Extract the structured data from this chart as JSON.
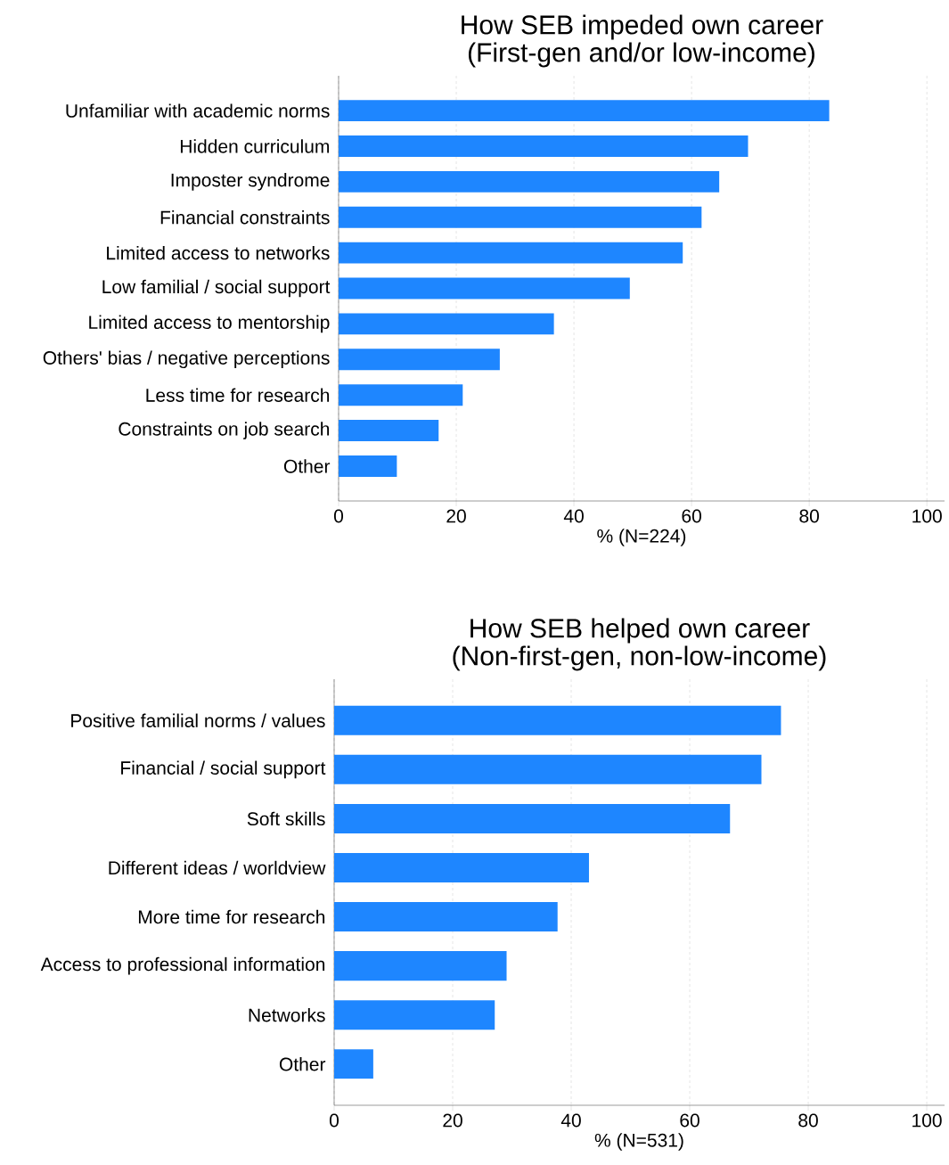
{
  "chart_data": [
    {
      "type": "bar",
      "orientation": "horizontal",
      "title": "How SEB impeded own career",
      "subtitle": "(First-gen and/or low-income)",
      "xlabel": "% (N=224)",
      "categories": [
        "Unfamiliar with academic norms",
        "Hidden curriculum",
        "Imposter syndrome",
        "Financial constraints",
        "Limited access to networks",
        "Low familial / social support",
        "Limited access to mentorship",
        "Others' bias / negative perceptions",
        "Less time for research",
        "Constraints on job search",
        "Other"
      ],
      "values": [
        83.4,
        69.6,
        64.7,
        61.7,
        58.5,
        49.5,
        36.6,
        27.4,
        21.1,
        17.0,
        9.9
      ],
      "color": "#1e86ff",
      "xlim": [
        0,
        103
      ],
      "xticks": [
        0,
        20,
        40,
        60,
        80,
        100
      ],
      "grid": "x"
    },
    {
      "type": "bar",
      "orientation": "horizontal",
      "title": "How SEB helped own career",
      "subtitle": "(Non-first-gen, non-low-income)",
      "xlabel": "% (N=531)",
      "categories": [
        "Positive familial norms / values",
        "Financial / social support",
        "Soft skills",
        "Different ideas / worldview",
        "More time for research",
        "Access to professional information",
        "Networks",
        "Other"
      ],
      "values": [
        75.4,
        72.1,
        66.8,
        43.0,
        37.7,
        29.1,
        27.1,
        6.6
      ],
      "color": "#1e86ff",
      "xlim": [
        0,
        103
      ],
      "xticks": [
        0,
        20,
        40,
        60,
        80,
        100
      ],
      "grid": "x"
    }
  ]
}
